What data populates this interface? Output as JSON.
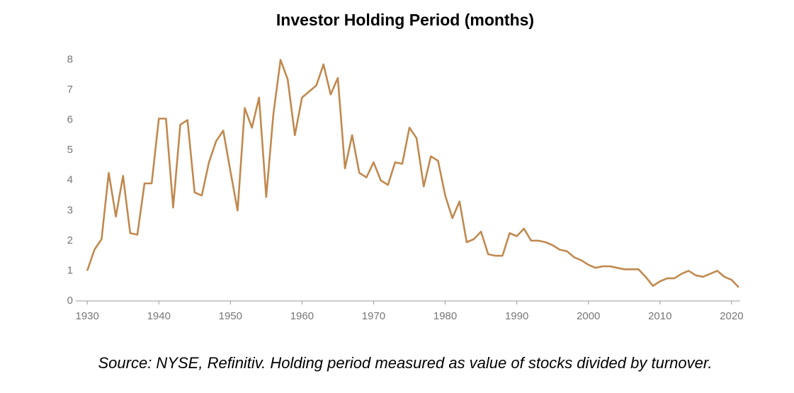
{
  "chart_data": {
    "type": "line",
    "title": "Investor Holding Period (months)",
    "source": "Source: NYSE, Refinitiv. Holding period measured as value of stocks divided by turnover.",
    "color": "#c0894f",
    "x": [
      1930,
      1931,
      1932,
      1933,
      1934,
      1935,
      1936,
      1937,
      1938,
      1939,
      1940,
      1941,
      1942,
      1943,
      1944,
      1945,
      1946,
      1947,
      1948,
      1949,
      1950,
      1951,
      1952,
      1953,
      1954,
      1955,
      1956,
      1957,
      1958,
      1959,
      1960,
      1961,
      1962,
      1963,
      1964,
      1965,
      1966,
      1967,
      1968,
      1969,
      1970,
      1971,
      1972,
      1973,
      1974,
      1975,
      1976,
      1977,
      1978,
      1979,
      1980,
      1981,
      1982,
      1983,
      1984,
      1985,
      1986,
      1987,
      1988,
      1989,
      1990,
      1991,
      1992,
      1993,
      1994,
      1995,
      1996,
      1997,
      1998,
      1999,
      2000,
      2001,
      2002,
      2003,
      2004,
      2005,
      2006,
      2007,
      2008,
      2009,
      2010,
      2011,
      2012,
      2013,
      2014,
      2015,
      2016,
      2017,
      2018,
      2019,
      2020,
      2021
    ],
    "values": [
      1.0,
      1.7,
      2.05,
      4.25,
      2.8,
      4.15,
      2.25,
      2.2,
      3.9,
      3.9,
      6.05,
      6.05,
      3.1,
      5.85,
      6.0,
      3.6,
      3.5,
      4.6,
      5.3,
      5.65,
      4.3,
      3.0,
      6.4,
      5.75,
      6.75,
      3.45,
      6.2,
      8.0,
      7.35,
      5.5,
      6.75,
      6.95,
      7.15,
      7.85,
      6.85,
      7.4,
      4.4,
      5.5,
      4.25,
      4.1,
      4.6,
      4.0,
      3.85,
      4.6,
      4.55,
      5.75,
      5.4,
      3.8,
      4.8,
      4.65,
      3.5,
      2.75,
      3.3,
      1.95,
      2.05,
      2.3,
      1.55,
      1.5,
      1.5,
      2.25,
      2.15,
      2.4,
      2.0,
      2.0,
      1.95,
      1.85,
      1.7,
      1.65,
      1.45,
      1.35,
      1.2,
      1.1,
      1.15,
      1.15,
      1.1,
      1.05,
      1.05,
      1.05,
      0.8,
      0.5,
      0.65,
      0.75,
      0.75,
      0.9,
      1.0,
      0.85,
      0.8,
      0.9,
      1.0,
      0.8,
      0.7,
      0.45
    ],
    "xlim": [
      1928.4,
      2021.2
    ],
    "xticks": [
      1930,
      1940,
      1950,
      1960,
      1970,
      1980,
      1990,
      2000,
      2010,
      2020
    ],
    "ylim": [
      0,
      8.2
    ],
    "yticks": [
      0,
      1,
      2,
      3,
      4,
      5,
      6,
      7,
      8
    ],
    "grid": false
  }
}
